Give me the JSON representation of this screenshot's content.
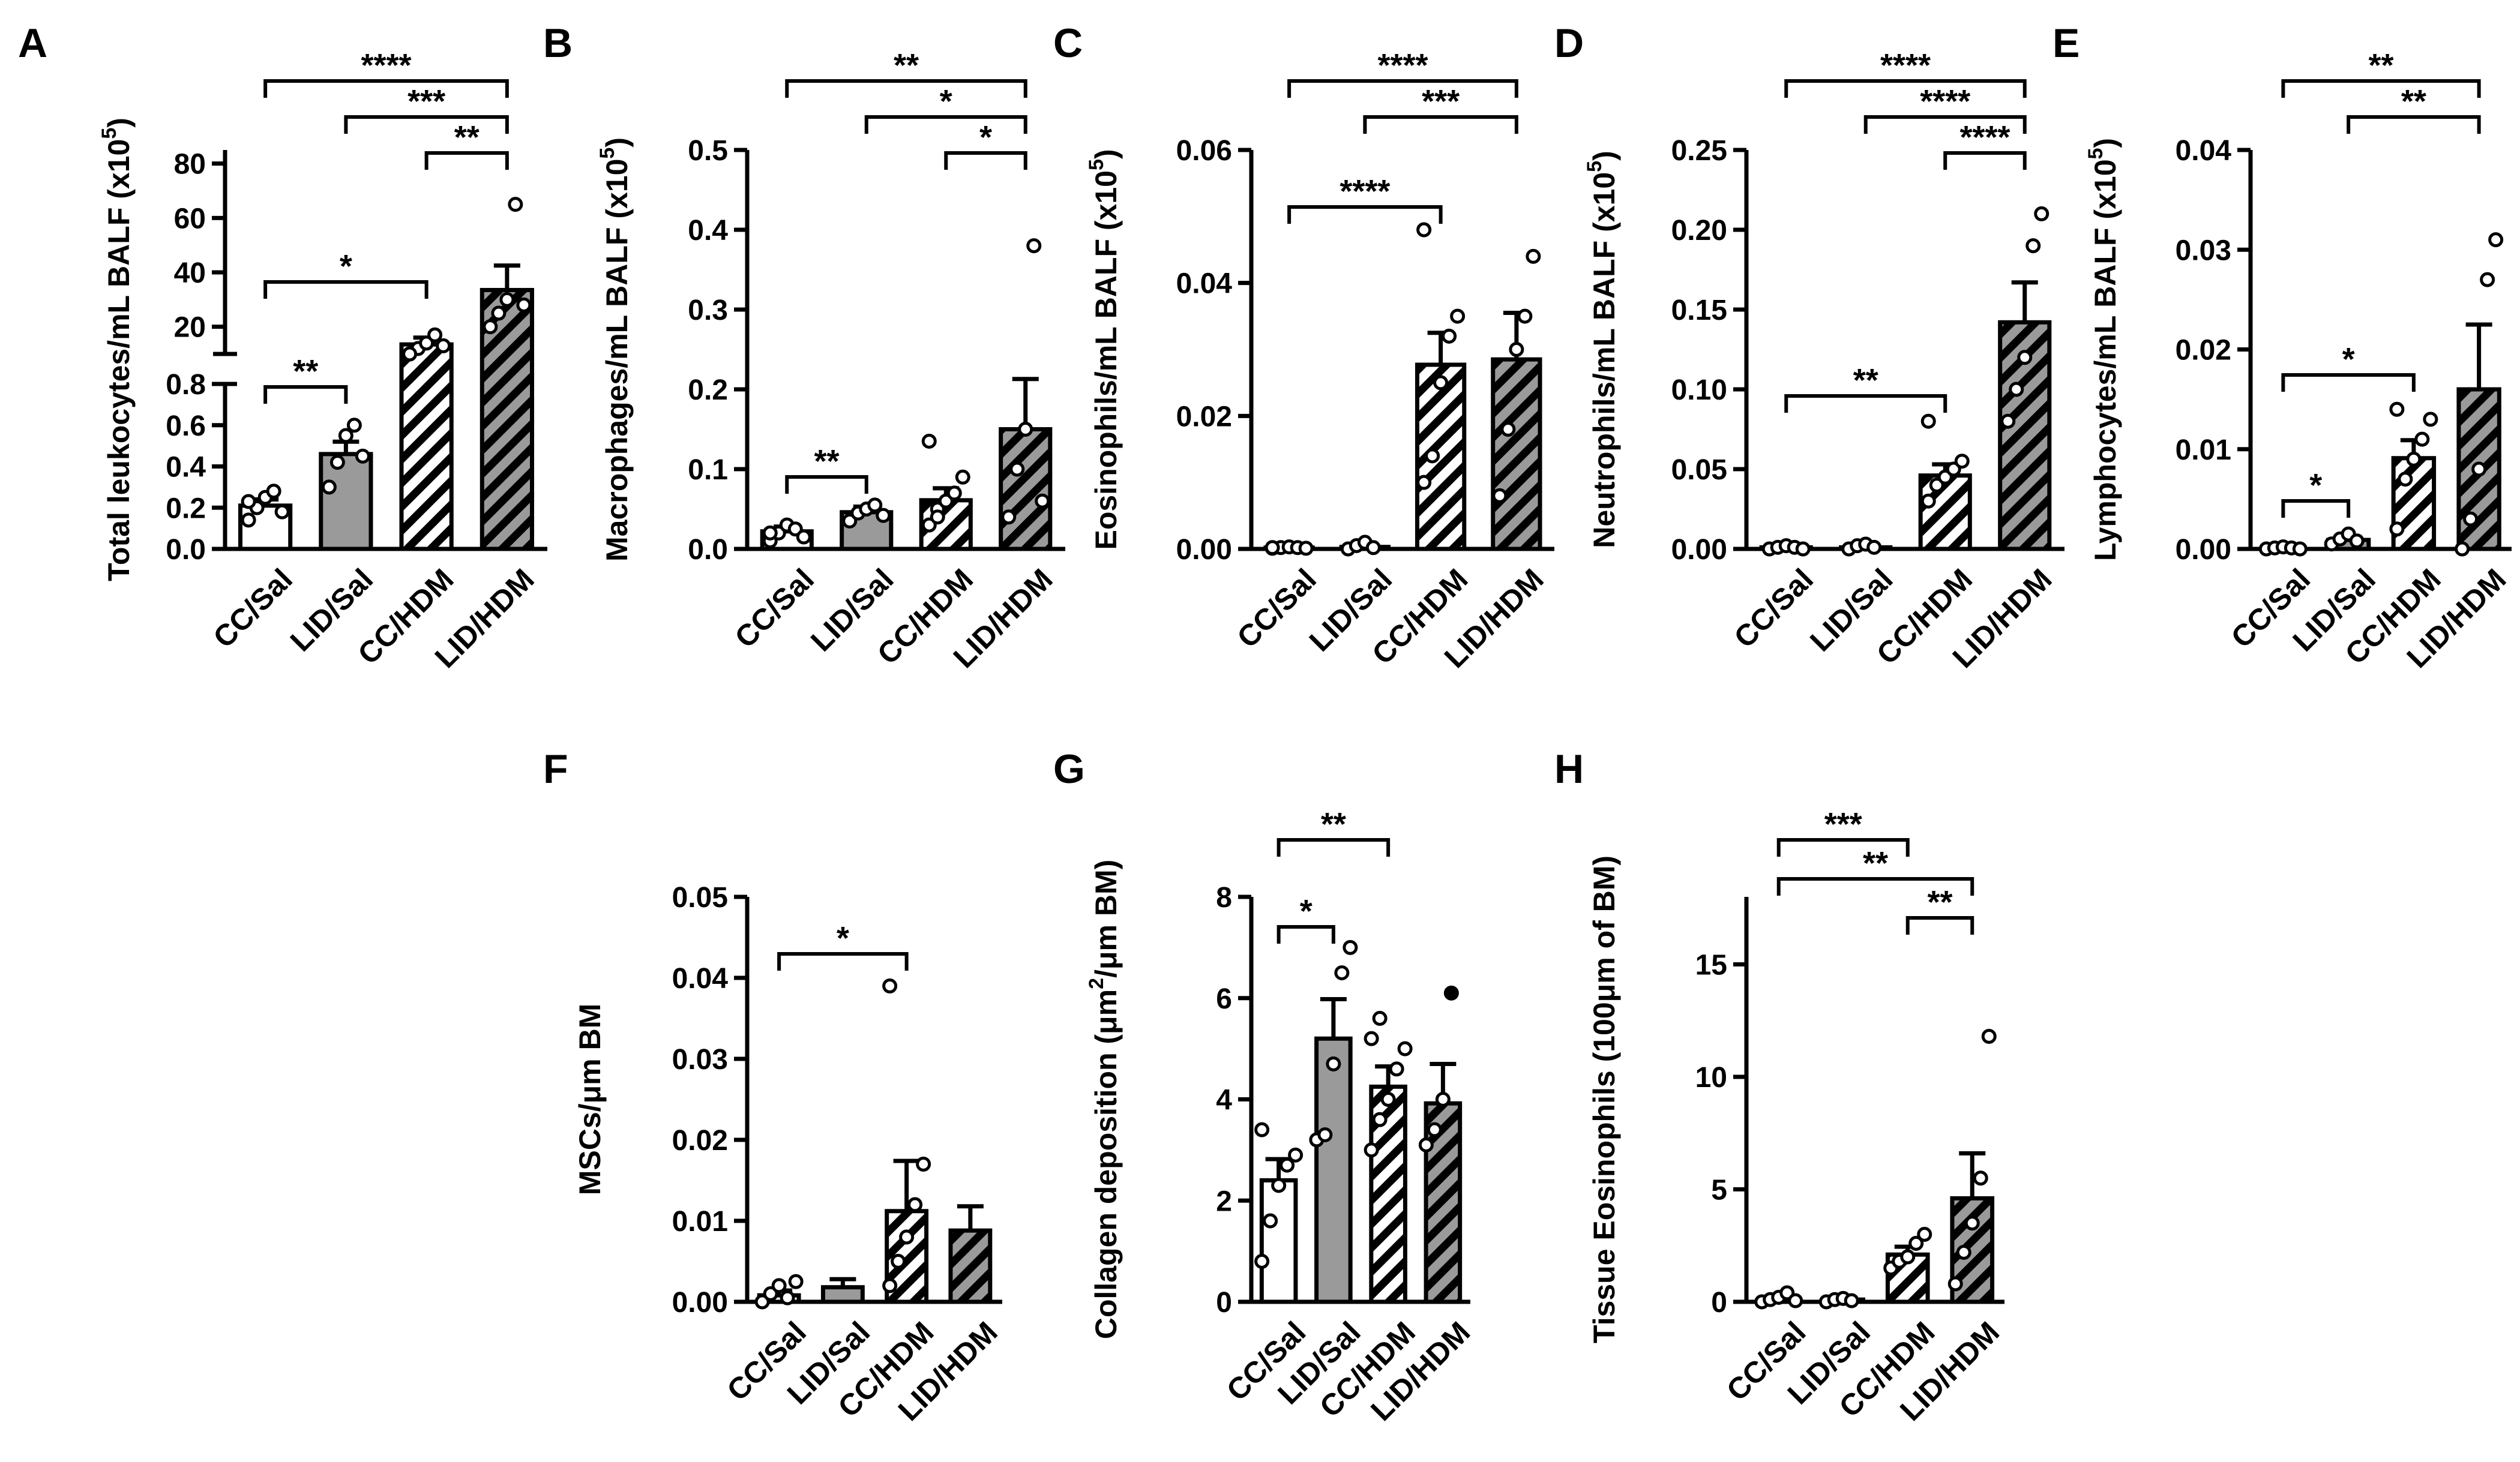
{
  "groups": [
    "CC/Sal",
    "LID/Sal",
    "CC/HDM",
    "LID/HDM"
  ],
  "chart_data": [
    {
      "id": "A",
      "type": "bar",
      "title": "",
      "panel_label": "A",
      "ylabel": "Total leukocytes/mL BALF (x10",
      "ylabel_sup": "5",
      "ylabel_close": ")",
      "categories": [
        "CC/Sal",
        "LID/Sal",
        "CC/HDM",
        "LID/HDM"
      ],
      "values": [
        0.21,
        0.46,
        13.5,
        33.5
      ],
      "errors": [
        0.03,
        0.06,
        2.5,
        9.0
      ],
      "points": [
        [
          0.14,
          0.2,
          0.25,
          0.28,
          0.18,
          0.23
        ],
        [
          0.3,
          0.42,
          0.55,
          0.6,
          0.45
        ],
        [
          10,
          12,
          14,
          17,
          13,
          9
        ],
        [
          20,
          25,
          30,
          65,
          28
        ]
      ],
      "broken_axis": {
        "lower": {
          "ylim": [
            0,
            0.8
          ],
          "ticks": [
            0.0,
            0.2,
            0.4,
            0.6,
            0.8
          ],
          "tick_labels": [
            "0.0",
            "0.2",
            "0.4",
            "0.6",
            "0.8"
          ]
        },
        "upper": {
          "ylim": [
            10,
            85
          ],
          "ticks": [
            20,
            40,
            60,
            80
          ],
          "tick_labels": [
            "20",
            "40",
            "60",
            "80"
          ]
        }
      },
      "significance": [
        {
          "from": "CC/Sal",
          "to": "LID/HDM",
          "label": "****"
        },
        {
          "from": "LID/Sal",
          "to": "LID/HDM",
          "label": "***"
        },
        {
          "from": "CC/HDM",
          "to": "LID/HDM",
          "label": "**"
        },
        {
          "from": "CC/Sal",
          "to": "CC/HDM",
          "label": "*"
        },
        {
          "from": "CC/Sal",
          "to": "LID/Sal",
          "label": "**"
        }
      ]
    },
    {
      "id": "B",
      "type": "bar",
      "title": "",
      "panel_label": "B",
      "ylabel": "Macrophages/mL BALF (x10",
      "ylabel_sup": "5",
      "ylabel_close": ")",
      "categories": [
        "CC/Sal",
        "LID/Sal",
        "CC/HDM",
        "LID/HDM"
      ],
      "values": [
        0.022,
        0.046,
        0.061,
        0.15
      ],
      "errors": [
        0.006,
        0.007,
        0.015,
        0.063
      ],
      "ylim": [
        0,
        0.5
      ],
      "ticks": [
        0,
        0.1,
        0.2,
        0.3,
        0.4,
        0.5
      ],
      "tick_labels": [
        "0.0",
        "0.1",
        "0.2",
        "0.3",
        "0.4",
        "0.5"
      ],
      "points": [
        [
          0.01,
          0.02,
          0.03,
          0.025,
          0.015,
          0.02
        ],
        [
          0.035,
          0.045,
          0.05,
          0.055,
          0.042
        ],
        [
          0.03,
          0.05,
          0.06,
          0.07,
          0.09,
          0.135,
          0.04
        ],
        [
          0.04,
          0.1,
          0.15,
          0.38,
          0.06
        ]
      ],
      "significance": [
        {
          "from": "CC/Sal",
          "to": "LID/HDM",
          "label": "**"
        },
        {
          "from": "LID/Sal",
          "to": "LID/HDM",
          "label": "*"
        },
        {
          "from": "CC/HDM",
          "to": "LID/HDM",
          "label": "*"
        },
        {
          "from": "CC/Sal",
          "to": "LID/Sal",
          "label": "**"
        }
      ]
    },
    {
      "id": "C",
      "type": "bar",
      "title": "",
      "panel_label": "C",
      "ylabel": "Eosinophils/mL BALF (x10",
      "ylabel_sup": "5",
      "ylabel_close": ")",
      "categories": [
        "CC/Sal",
        "LID/Sal",
        "CC/HDM",
        "LID/HDM"
      ],
      "values": [
        0.0002,
        0.0003,
        0.0277,
        0.0285
      ],
      "errors": [
        0.0001,
        0.0002,
        0.0048,
        0.007
      ],
      "ylim": [
        0,
        0.06
      ],
      "ticks": [
        0,
        0.02,
        0.04,
        0.06
      ],
      "tick_labels": [
        "0.00",
        "0.02",
        "0.04",
        "0.06"
      ],
      "points": [
        [
          0.0001,
          0.0002,
          0.0003,
          0.0002,
          0.0001,
          0.0002
        ],
        [
          0.0,
          0.0005,
          0.001,
          0.0002
        ],
        [
          0.01,
          0.014,
          0.025,
          0.032,
          0.035,
          0.048
        ],
        [
          0.008,
          0.018,
          0.03,
          0.035,
          0.044
        ]
      ],
      "significance": [
        {
          "from": "CC/Sal",
          "to": "LID/HDM",
          "label": "****"
        },
        {
          "from": "LID/Sal",
          "to": "LID/HDM",
          "label": "***"
        },
        {
          "from": "CC/Sal",
          "to": "CC/HDM",
          "label": "****"
        }
      ]
    },
    {
      "id": "D",
      "type": "bar",
      "title": "",
      "panel_label": "D",
      "ylabel": "Neutrophils/mL BALF (x10",
      "ylabel_sup": "5",
      "ylabel_close": ")",
      "categories": [
        "CC/Sal",
        "LID/Sal",
        "CC/HDM",
        "LID/HDM"
      ],
      "values": [
        0.001,
        0.001,
        0.046,
        0.142
      ],
      "errors": [
        0.0005,
        0.0008,
        0.007,
        0.025
      ],
      "ylim": [
        0,
        0.25
      ],
      "ticks": [
        0,
        0.05,
        0.1,
        0.15,
        0.2,
        0.25
      ],
      "tick_labels": [
        "0.00",
        "0.05",
        "0.10",
        "0.15",
        "0.20",
        "0.25"
      ],
      "points": [
        [
          0.0,
          0.001,
          0.002,
          0.001,
          0.0
        ],
        [
          0.0,
          0.002,
          0.003,
          0.001
        ],
        [
          0.03,
          0.04,
          0.045,
          0.05,
          0.055,
          0.08
        ],
        [
          0.08,
          0.1,
          0.12,
          0.19,
          0.21
        ]
      ],
      "significance": [
        {
          "from": "CC/Sal",
          "to": "LID/HDM",
          "label": "****"
        },
        {
          "from": "LID/Sal",
          "to": "LID/HDM",
          "label": "****"
        },
        {
          "from": "CC/HDM",
          "to": "LID/HDM",
          "label": "****"
        },
        {
          "from": "CC/Sal",
          "to": "CC/HDM",
          "label": "**"
        }
      ]
    },
    {
      "id": "E",
      "type": "bar",
      "title": "",
      "panel_label": "E",
      "ylabel": "Lymphocytes/mL BALF (x10",
      "ylabel_sup": "5",
      "ylabel_close": ")",
      "categories": [
        "CC/Sal",
        "LID/Sal",
        "CC/HDM",
        "LID/HDM"
      ],
      "values": [
        0.0001,
        0.0009,
        0.0091,
        0.016
      ],
      "errors": [
        5e-05,
        0.0003,
        0.0018,
        0.0065
      ],
      "ylim": [
        0,
        0.04
      ],
      "ticks": [
        0,
        0.01,
        0.02,
        0.03,
        0.04
      ],
      "tick_labels": [
        "0.00",
        "0.01",
        "0.02",
        "0.03",
        "0.04"
      ],
      "points": [
        [
          0.0,
          0.0001,
          0.0002,
          0.0001,
          0.0
        ],
        [
          0.0005,
          0.001,
          0.0015,
          0.0008
        ],
        [
          0.002,
          0.007,
          0.009,
          0.011,
          0.013,
          0.014
        ],
        [
          0.0,
          0.003,
          0.008,
          0.027,
          0.031
        ]
      ],
      "significance": [
        {
          "from": "CC/Sal",
          "to": "LID/HDM",
          "label": "**"
        },
        {
          "from": "LID/Sal",
          "to": "LID/HDM",
          "label": "**"
        },
        {
          "from": "CC/Sal",
          "to": "CC/HDM",
          "label": "*"
        },
        {
          "from": "CC/Sal",
          "to": "LID/Sal",
          "label": "*"
        }
      ]
    },
    {
      "id": "F",
      "type": "bar",
      "title": "",
      "panel_label": "F",
      "ylabel": "MSCs/μm BM",
      "ylabel_sup": "",
      "ylabel_close": "",
      "categories": [
        "CC/Sal",
        "LID/Sal",
        "CC/HDM",
        "LID/HDM"
      ],
      "values": [
        0.0008,
        0.0018,
        0.0112,
        0.0088
      ],
      "errors": [
        0.0006,
        0.001,
        0.0062,
        0.003
      ],
      "ylim": [
        0,
        0.05
      ],
      "ticks": [
        0,
        0.01,
        0.02,
        0.03,
        0.04,
        0.05
      ],
      "tick_labels": [
        "0.00",
        "0.01",
        "0.02",
        "0.03",
        "0.04",
        "0.05"
      ],
      "points": [
        [
          0.0,
          0.001,
          0.002,
          0.0005,
          0.0025
        ],
        [],
        [
          0.002,
          0.005,
          0.008,
          0.012,
          0.017,
          0.039
        ],
        []
      ],
      "significance": [
        {
          "from": "CC/Sal",
          "to": "CC/HDM",
          "label": "*"
        }
      ]
    },
    {
      "id": "G",
      "type": "bar",
      "title": "",
      "panel_label": "G",
      "ylabel": "Collagen deposition (μm",
      "ylabel_sup": "2",
      "ylabel_close": "/μm BM)",
      "categories": [
        "CC/Sal",
        "LID/Sal",
        "CC/HDM",
        "LID/HDM"
      ],
      "values": [
        2.4,
        5.2,
        4.25,
        3.92
      ],
      "errors": [
        0.42,
        0.78,
        0.4,
        0.78
      ],
      "ylim": [
        0,
        8
      ],
      "ticks": [
        0,
        2,
        4,
        6,
        8
      ],
      "tick_labels": [
        "0",
        "2",
        "4",
        "6",
        "8"
      ],
      "points": [
        [
          0.8,
          1.6,
          2.3,
          2.7,
          2.9,
          3.4
        ],
        [
          3.2,
          3.3,
          4.7,
          6.5,
          7.0
        ],
        [
          3.0,
          3.6,
          4.0,
          4.6,
          5.0,
          5.2,
          5.6
        ],
        [
          3.1,
          3.4,
          4.0,
          6.1
        ]
      ],
      "significance": [
        {
          "from": "CC/Sal",
          "to": "CC/HDM",
          "label": "**"
        },
        {
          "from": "CC/Sal",
          "to": "LID/Sal",
          "label": "*"
        }
      ]
    },
    {
      "id": "H",
      "type": "bar",
      "title": "",
      "panel_label": "H",
      "ylabel": "Tissue  Eosinophils (100μm of BM)",
      "ylabel_sup": "",
      "ylabel_close": "",
      "categories": [
        "CC/Sal",
        "LID/Sal",
        "CC/HDM",
        "LID/HDM"
      ],
      "values": [
        0.15,
        0.1,
        2.1,
        4.6
      ],
      "errors": [
        0.07,
        0.05,
        0.35,
        2.0
      ],
      "ylim": [
        0,
        18
      ],
      "ticks": [
        0,
        5,
        10,
        15
      ],
      "tick_labels": [
        "0",
        "5",
        "10",
        "15"
      ],
      "points": [
        [
          0.0,
          0.1,
          0.2,
          0.4,
          0.05
        ],
        [
          0.0,
          0.1,
          0.15,
          0.05
        ],
        [
          1.5,
          1.8,
          2.0,
          2.6,
          3.0
        ],
        [
          0.8,
          2.2,
          3.5,
          5.5,
          11.8
        ]
      ],
      "significance": [
        {
          "from": "CC/Sal",
          "to": "CC/HDM",
          "label": "***"
        },
        {
          "from": "CC/Sal",
          "to": "LID/HDM",
          "label": "**"
        },
        {
          "from": "CC/HDM",
          "to": "LID/HDM",
          "label": "**"
        }
      ]
    }
  ]
}
